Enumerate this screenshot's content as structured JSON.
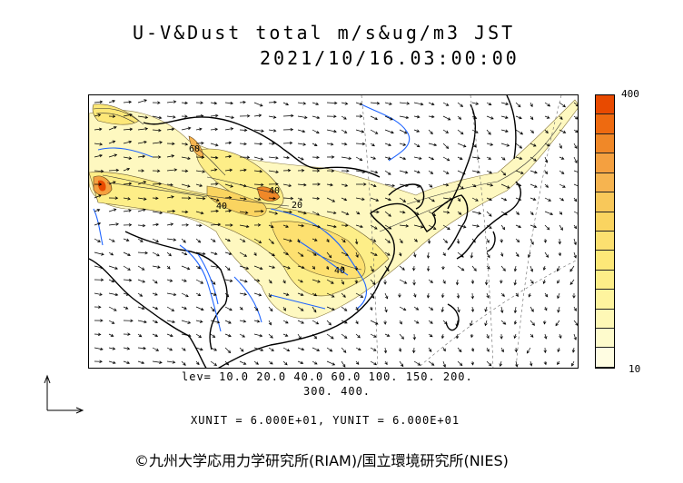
{
  "title": {
    "line1": "U-V&Dust total m/s&ug/m3 JST",
    "line2": "2021/10/16.03:00:00"
  },
  "map": {
    "land_color": "#ffffff",
    "coast_color": "#000000",
    "river_color": "#1e64ff",
    "contour_labels": [
      "20",
      "40",
      "40",
      "60",
      "40"
    ]
  },
  "colorbar": {
    "top_label": "400",
    "bottom_label": "10",
    "colors": [
      "#e84a00",
      "#ee6a10",
      "#f08828",
      "#f4a040",
      "#f6b450",
      "#f8c85a",
      "#fad460",
      "#fce070",
      "#fde878",
      "#fdee88",
      "#fef49e",
      "#fef8b6",
      "#fefbcc",
      "#fffde2"
    ]
  },
  "levels": {
    "line1": "lev= 10.0 20.0 40.0 60.0 100. 150. 200.",
    "line2": "300. 400."
  },
  "units_text": "XUNIT = 6.000E+01, YUNIT = 6.000E+01",
  "credit": "©九州大学応用力学研究所(RIAM)/国立環境研究所(NIES)"
}
